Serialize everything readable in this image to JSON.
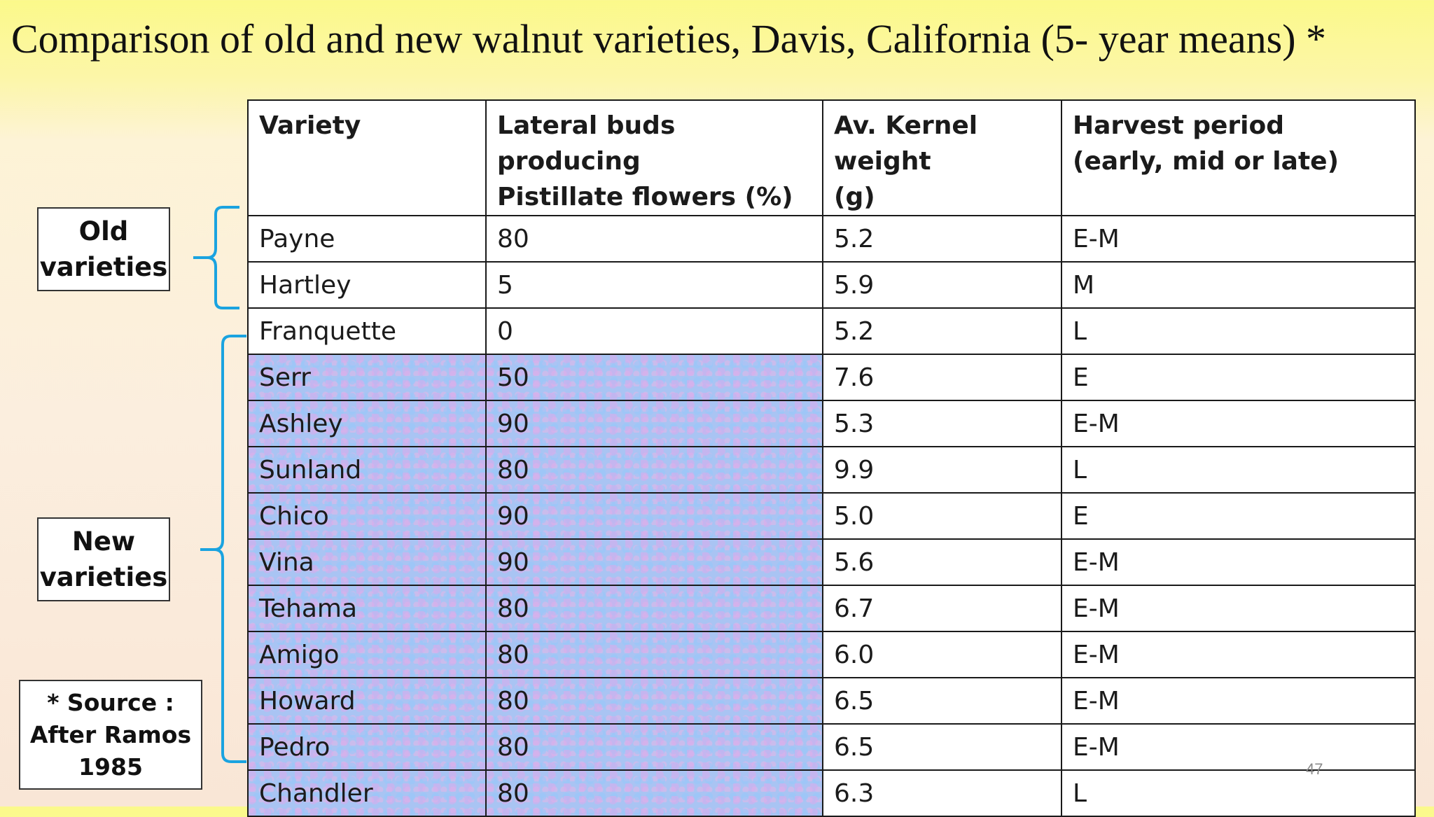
{
  "title": "Comparison of old and new walnut varieties, Davis, California (5- year means) *",
  "table": {
    "headers": [
      {
        "line1": "Variety",
        "line2": ""
      },
      {
        "line1": "Lateral buds producing",
        "line2": "Pistillate flowers (%)"
      },
      {
        "line1": "Av. Kernel weight",
        "line2": "(g)"
      },
      {
        "line1": "Harvest period",
        "line2": "(early, mid or late)"
      }
    ],
    "rows": [
      {
        "variety": "Payne",
        "lateral_buds": "80",
        "kernel_weight": "5.2",
        "harvest": "E-M"
      },
      {
        "variety": "Hartley",
        "lateral_buds": "5",
        "kernel_weight": "5.9",
        "harvest": "M"
      },
      {
        "variety": "Franquette",
        "lateral_buds": "0",
        "kernel_weight": "5.2",
        "harvest": "L"
      },
      {
        "variety": "Serr",
        "lateral_buds": "50",
        "kernel_weight": "7.6",
        "harvest": "E"
      },
      {
        "variety": "Ashley",
        "lateral_buds": "90",
        "kernel_weight": "5.3",
        "harvest": "E-M"
      },
      {
        "variety": "Sunland",
        "lateral_buds": "80",
        "kernel_weight": "9.9",
        "harvest": "L"
      },
      {
        "variety": "Chico",
        "lateral_buds": "90",
        "kernel_weight": "5.0",
        "harvest": "E"
      },
      {
        "variety": "Vina",
        "lateral_buds": "90",
        "kernel_weight": "5.6",
        "harvest": "E-M"
      },
      {
        "variety": "Tehama",
        "lateral_buds": "80",
        "kernel_weight": "6.7",
        "harvest": "E-M"
      },
      {
        "variety": "Amigo",
        "lateral_buds": "80",
        "kernel_weight": "6.0",
        "harvest": "E-M"
      },
      {
        "variety": "Howard",
        "lateral_buds": "80",
        "kernel_weight": "6.5",
        "harvest": "E-M"
      },
      {
        "variety": "Pedro",
        "lateral_buds": "80",
        "kernel_weight": "6.5",
        "harvest": "E-M"
      },
      {
        "variety": "Chandler",
        "lateral_buds": "80",
        "kernel_weight": "6.3",
        "harvest": "L"
      }
    ]
  },
  "labels": {
    "old": {
      "line1": "Old",
      "line2": "varieties"
    },
    "new": {
      "line1": "New",
      "line2": "varieties"
    },
    "source": {
      "line1": "* Source :",
      "line2": "After Ramos",
      "line3": "1985"
    }
  },
  "page_number": "47",
  "colors": {
    "brace": "#1aa3e0",
    "new_row_shade": "#a9c4f3",
    "title_band": "#fbf98a"
  }
}
